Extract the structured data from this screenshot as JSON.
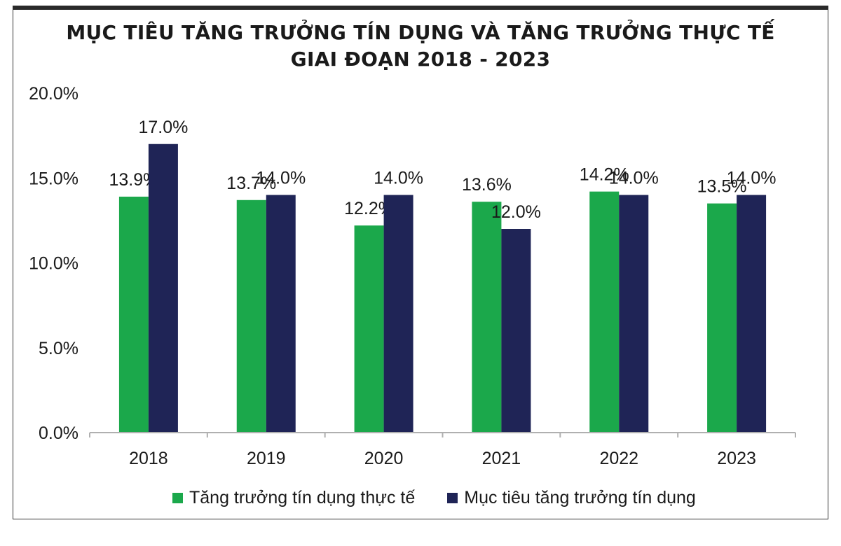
{
  "colors": {
    "actual": "#1ba84b",
    "target": "#1f2456",
    "axis": "#b0b0b0",
    "text": "#1a1a1a"
  },
  "chart_data": {
    "type": "bar",
    "title": [
      "MỤC TIÊU TĂNG TRƯỞNG TÍN DỤNG VÀ TĂNG TRƯỞNG THỰC TẾ",
      "GIAI ĐOẠN 2018 - 2023"
    ],
    "categories": [
      "2018",
      "2019",
      "2020",
      "2021",
      "2022",
      "2023"
    ],
    "series": [
      {
        "name": "Tăng trưởng tín dụng thực tế",
        "values": [
          13.9,
          13.7,
          12.2,
          13.6,
          14.2,
          13.5
        ],
        "labels": [
          "13.9%",
          "13.7%",
          "12.2%",
          "13.6%",
          "14.2%",
          "13.5%"
        ]
      },
      {
        "name": "Mục tiêu tăng trưởng tín dụng",
        "values": [
          17.0,
          14.0,
          14.0,
          12.0,
          14.0,
          14.0
        ],
        "labels": [
          "17.0%",
          "14.0%",
          "14.0%",
          "12.0%",
          "14.0%",
          "14.0%"
        ]
      }
    ],
    "ylim": [
      0,
      20
    ],
    "yticks": [
      "0.0%",
      "5.0%",
      "10.0%",
      "15.0%",
      "20.0%"
    ],
    "ytick_values": [
      0,
      5,
      10,
      15,
      20
    ],
    "grid": false,
    "legend": "bottom"
  }
}
